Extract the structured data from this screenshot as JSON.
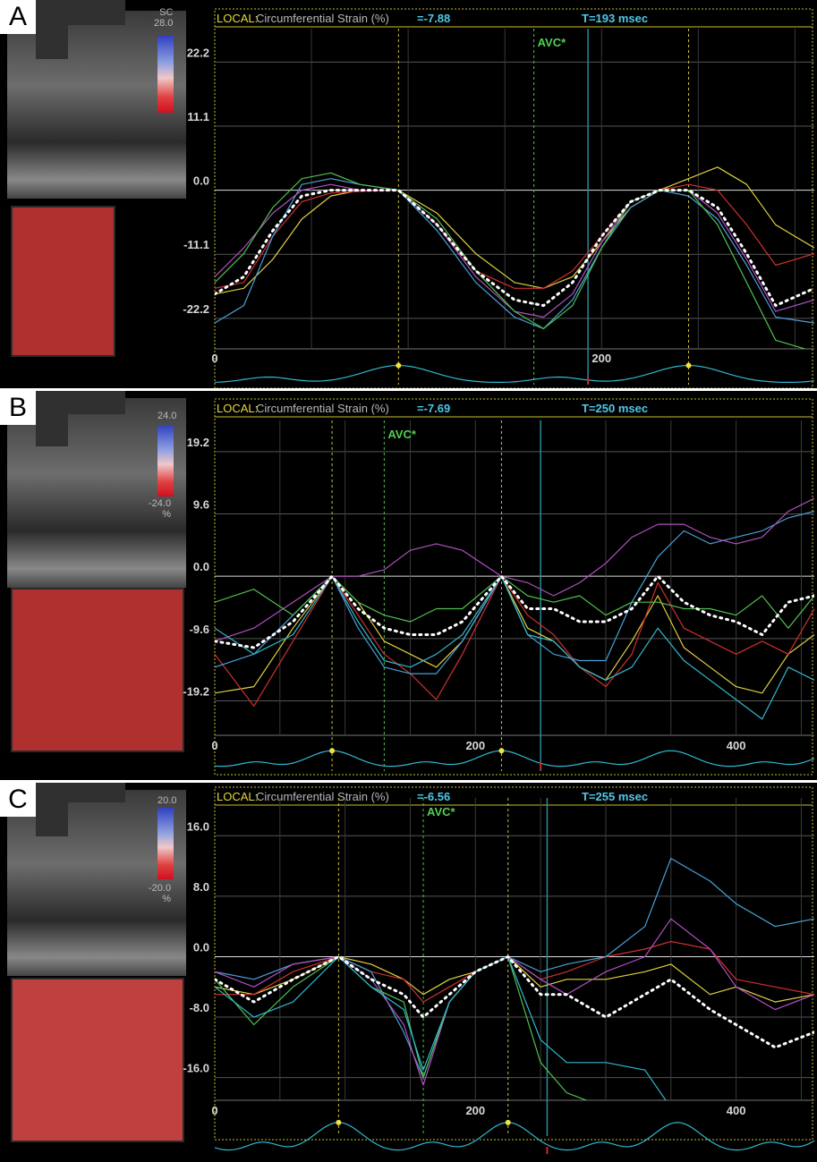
{
  "panels": [
    {
      "label": "A",
      "header_prefix": "LOCAL:",
      "header_title": "Circumferential Strain (%)",
      "header_value": "=-7.88",
      "time_label": "T=193 msec",
      "avc_label": "AVC*",
      "scale_top": "SC\n28.0",
      "scale_bottom": ""
    },
    {
      "label": "B",
      "header_prefix": "LOCAL:",
      "header_title": "Circumferential Strain (%)",
      "header_value": "=-7.69",
      "time_label": "T=250 msec",
      "avc_label": "AVC*",
      "scale_top": "24.0",
      "scale_bottom": "-24.0\n%"
    },
    {
      "label": "C",
      "header_prefix": "LOCAL:",
      "header_title": "Circumferential Strain (%)",
      "header_value": "=-6.56",
      "time_label": "T=255 msec",
      "avc_label": "AVC*",
      "scale_top": "20.0",
      "scale_bottom": "-20.0\n%"
    }
  ],
  "colors": {
    "header_prefix": "#e8d838",
    "header_text": "#b8b8b8",
    "header_value": "#4ec8e8",
    "avc": "#50d050",
    "ecg": "#30b8d0",
    "tick": "#ffffff"
  },
  "chart_data": [
    {
      "type": "line",
      "ylabel": "Circumferential Strain (%)",
      "yticks": [
        22.2,
        11.1,
        0.0,
        -11.1,
        -22.2
      ],
      "ytick_labels": [
        "22.2",
        "11.1",
        "0.0",
        "-11.1",
        "-22.2"
      ],
      "ylim": [
        -27.5,
        28
      ],
      "xlim": [
        0,
        310
      ],
      "xticks": [
        0,
        200
      ],
      "xtick_labels": [
        "0",
        "200"
      ],
      "markers": {
        "yellow_dashed": [
          95,
          245
        ],
        "avc": 165,
        "current": 193
      },
      "x": [
        0,
        15,
        30,
        45,
        60,
        75,
        95,
        115,
        135,
        155,
        170,
        185,
        200,
        215,
        230,
        245,
        260,
        275,
        290,
        310
      ],
      "series": [
        {
          "color": "#e0d040",
          "values": [
            -18,
            -17,
            -12,
            -5,
            -1,
            0,
            0,
            -4,
            -11,
            -16,
            -17,
            -15,
            -9,
            -3,
            0,
            2,
            4,
            1,
            -6,
            -10
          ]
        },
        {
          "color": "#d03030",
          "values": [
            -17,
            -16,
            -8,
            -2,
            -0.5,
            -0.2,
            0,
            -6,
            -14,
            -17,
            -17,
            -14,
            -8,
            -2,
            0,
            1,
            0,
            -6,
            -13,
            -11
          ]
        },
        {
          "color": "#4aa0d8",
          "values": [
            -23,
            -20,
            -8,
            1,
            2,
            1,
            0,
            -7,
            -16,
            -22,
            -24,
            -19,
            -10,
            -3,
            0,
            -1,
            -5,
            -13,
            -22,
            -23
          ]
        },
        {
          "color": "#b050c0",
          "values": [
            -15,
            -10,
            -4,
            0,
            1,
            0,
            0,
            -6,
            -15,
            -21,
            -22,
            -18,
            -9,
            -2,
            0,
            0,
            -4,
            -12,
            -21,
            -19
          ]
        },
        {
          "color": "#50c050",
          "values": [
            -16,
            -11,
            -3,
            2,
            3,
            1,
            0,
            -5,
            -14,
            -21,
            -24,
            -20,
            -10,
            -2,
            0,
            0,
            -6,
            -16,
            -26,
            -28
          ]
        },
        {
          "color": "#ffffff",
          "dotted": true,
          "values": [
            -18,
            -15,
            -7,
            -1,
            0,
            0,
            0,
            -6,
            -14,
            -19,
            -20,
            -16,
            -8,
            -2,
            0,
            0,
            -3,
            -11,
            -20,
            -17
          ]
        }
      ]
    },
    {
      "type": "line",
      "ylabel": "Circumferential Strain (%)",
      "yticks": [
        19.2,
        9.6,
        0.0,
        -9.6,
        -19.2
      ],
      "ytick_labels": [
        "19.2",
        "9.6",
        "0.0",
        "-9.6",
        "-19.2"
      ],
      "ylim": [
        -24.5,
        24
      ],
      "xlim": [
        0,
        460
      ],
      "xticks": [
        0,
        200,
        400
      ],
      "xtick_labels": [
        "0",
        "200",
        "400"
      ],
      "markers": {
        "yellow_dashed": [
          90,
          220
        ],
        "avc": 130,
        "current": 250
      },
      "x": [
        0,
        30,
        60,
        90,
        110,
        130,
        150,
        170,
        190,
        220,
        240,
        260,
        280,
        300,
        320,
        340,
        360,
        380,
        400,
        420,
        440,
        460
      ],
      "series": [
        {
          "color": "#e0d040",
          "values": [
            -18,
            -17,
            -8,
            0,
            -4,
            -10,
            -12,
            -14,
            -10,
            0,
            -8,
            -10,
            -14,
            -16,
            -10,
            -3,
            -11,
            -14,
            -17,
            -18,
            -12,
            -9
          ]
        },
        {
          "color": "#d03030",
          "values": [
            -12,
            -20,
            -10,
            0,
            -6,
            -12,
            -15,
            -19,
            -12,
            0,
            -6,
            -9,
            -14,
            -17,
            -12,
            -1,
            -8,
            -10,
            -12,
            -10,
            -12,
            -5
          ]
        },
        {
          "color": "#4aa0d8",
          "values": [
            -14,
            -12,
            -6,
            0,
            -8,
            -14,
            -15,
            -15,
            -10,
            0,
            -9,
            -12,
            -13,
            -13,
            -4,
            3,
            7,
            5,
            6,
            7,
            9,
            10
          ]
        },
        {
          "color": "#b050c0",
          "values": [
            -10,
            -8,
            -4,
            0,
            0,
            1,
            4,
            5,
            4,
            0,
            -1,
            -3,
            -1,
            2,
            6,
            8,
            8,
            6,
            5,
            6,
            10,
            12
          ]
        },
        {
          "color": "#50c050",
          "values": [
            -4,
            -2,
            -6,
            0,
            -4,
            -6,
            -7,
            -5,
            -5,
            0,
            -3,
            -4,
            -3,
            -6,
            -4,
            -4,
            -5,
            -5,
            -6,
            -3,
            -8,
            -3
          ]
        },
        {
          "color": "#30b8d0",
          "values": [
            -8,
            -12,
            -9,
            0,
            -7,
            -13,
            -14,
            -12,
            -9,
            0,
            -9,
            -10,
            -14,
            -16,
            -14,
            -8,
            -13,
            -16,
            -19,
            -22,
            -14,
            -16
          ]
        },
        {
          "color": "#ffffff",
          "dotted": true,
          "values": [
            -10,
            -11,
            -7,
            0,
            -5,
            -8,
            -9,
            -9,
            -7,
            0,
            -5,
            -5,
            -7,
            -7,
            -5,
            0,
            -4,
            -6,
            -7,
            -9,
            -4,
            -3
          ]
        }
      ]
    },
    {
      "type": "line",
      "ylabel": "Circumferential Strain (%)",
      "yticks": [
        16.0,
        8.0,
        0.0,
        -8.0,
        -16.0
      ],
      "ytick_labels": [
        "16.0",
        "8.0",
        "0.0",
        "-8.0",
        "-16.0"
      ],
      "ylim": [
        -19,
        21
      ],
      "xlim": [
        0,
        460
      ],
      "xticks": [
        0,
        200,
        400
      ],
      "xtick_labels": [
        "0",
        "200",
        "400"
      ],
      "markers": {
        "yellow_dashed": [
          95,
          225
        ],
        "avc": 160,
        "current": 255
      },
      "x": [
        0,
        30,
        60,
        95,
        120,
        145,
        160,
        180,
        200,
        225,
        250,
        270,
        300,
        330,
        350,
        380,
        400,
        430,
        460
      ],
      "series": [
        {
          "color": "#e0d040",
          "values": [
            -4,
            -5,
            -3,
            0,
            -1,
            -3,
            -5,
            -3,
            -2,
            0,
            -4,
            -3,
            -3,
            -2,
            -1,
            -5,
            -4,
            -6,
            -5
          ]
        },
        {
          "color": "#d03030",
          "values": [
            -5,
            -5,
            -2,
            0,
            -2,
            -3,
            -6,
            -4,
            -2,
            0,
            -3,
            -2,
            0,
            1,
            2,
            1,
            -3,
            -4,
            -5
          ]
        },
        {
          "color": "#4aa0d8",
          "values": [
            -2,
            -3,
            -1,
            0,
            -2,
            -10,
            -16,
            -6,
            -2,
            0,
            -2,
            -1,
            0,
            4,
            13,
            10,
            7,
            4,
            5
          ]
        },
        {
          "color": "#b050c0",
          "values": [
            -2,
            -4,
            -1,
            0,
            -3,
            -9,
            -17,
            -6,
            -2,
            0,
            -3,
            -5,
            -2,
            0,
            5,
            1,
            -4,
            -7,
            -5
          ]
        },
        {
          "color": "#50c050",
          "values": [
            -3,
            -9,
            -4,
            0,
            -4,
            -6,
            -16,
            -6,
            -2,
            0,
            -14,
            -18,
            -20,
            -20,
            -20,
            -20,
            -20,
            -20,
            -20
          ]
        },
        {
          "color": "#30b8d0",
          "values": [
            -4,
            -8,
            -6,
            0,
            -4,
            -7,
            -15,
            -6,
            -2,
            0,
            -11,
            -14,
            -14,
            -15,
            -20,
            -20,
            -20,
            -20,
            -20
          ]
        },
        {
          "color": "#ffffff",
          "dotted": true,
          "values": [
            -3,
            -6,
            -3,
            0,
            -3,
            -5,
            -8,
            -5,
            -2,
            0,
            -5,
            -5,
            -8,
            -5,
            -3,
            -7,
            -9,
            -12,
            -10
          ]
        }
      ]
    }
  ]
}
